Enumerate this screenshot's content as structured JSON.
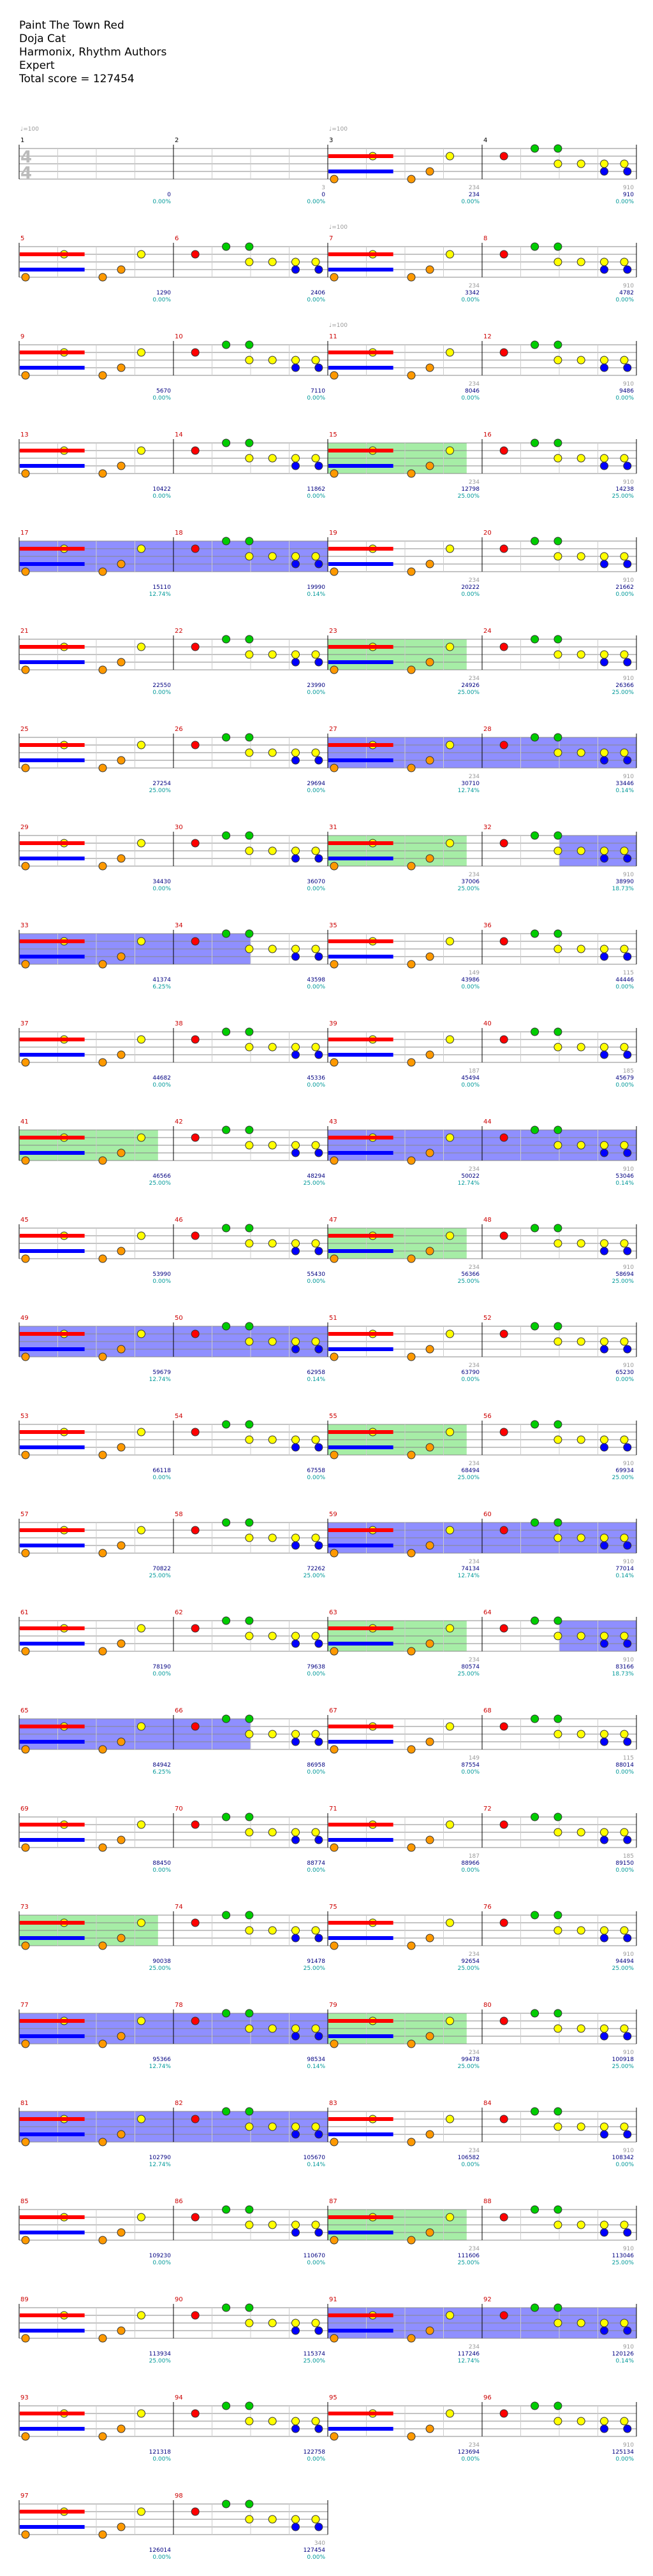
{
  "song": {
    "title": "Paint The Town Red",
    "artist": "Doja Cat",
    "charter": "Harmonix, Rhythm Authors",
    "difficulty": "Expert",
    "total_score_label": "Total score = 127454"
  },
  "time_signature": "4/4",
  "tempo_markers": [
    {
      "measure": 1,
      "label": "♩=100"
    },
    {
      "measure": 3,
      "label": "♩=100"
    },
    {
      "measure": 7,
      "label": "♩=100"
    },
    {
      "measure": 11,
      "label": "♩=100"
    }
  ],
  "colors": {
    "measure_number": "#cc0000",
    "score_text": "#000080",
    "percent_text": "#009999",
    "gray_text": "#999999",
    "overdrive_fill": "#00cc00",
    "fill_region": "#3333ff",
    "note_red": "#ff0000",
    "note_yellow": "#ffff00",
    "note_blue": "#0000ff",
    "note_green": "#00cc00",
    "note_orange": "#ff9900",
    "note_kick": "#ff9900",
    "sustain_brown": "#996600"
  },
  "systems": [
    {
      "measures": [
        1,
        2,
        3,
        4
      ],
      "scores": [
        "0",
        "0",
        "234",
        "910"
      ],
      "percents": [
        "0.00%",
        "0.00%",
        "0.00%",
        "0.00%"
      ],
      "gray": [
        "",
        "3",
        "234",
        "910"
      ],
      "od": null,
      "fill": null
    },
    {
      "measures": [
        5,
        6,
        7,
        8
      ],
      "scores": [
        "1290",
        "2406",
        "3342",
        "4782"
      ],
      "percents": [
        "0.00%",
        "0.00%",
        "0.00%",
        "0.00%"
      ],
      "gray": [
        "",
        "",
        "234",
        "910"
      ],
      "od": null,
      "fill": null
    },
    {
      "measures": [
        9,
        10,
        11,
        12
      ],
      "scores": [
        "5670",
        "7110",
        "8046",
        "9486"
      ],
      "percents": [
        "0.00%",
        "0.00%",
        "0.00%",
        "0.00%"
      ],
      "gray": [
        "",
        "",
        "234",
        "910"
      ],
      "od": null,
      "fill": null
    },
    {
      "measures": [
        13,
        14,
        15,
        16
      ],
      "scores": [
        "10422",
        "11862",
        "12798",
        "14238"
      ],
      "percents": [
        "0.00%",
        "0.00%",
        "25.00%",
        "25.00%"
      ],
      "gray": [
        "",
        "",
        "234",
        "910"
      ],
      "od": [
        2,
        2.9
      ],
      "fill": null
    },
    {
      "measures": [
        17,
        18,
        19,
        20
      ],
      "scores": [
        "15110",
        "19990",
        "20222",
        "21662"
      ],
      "percents": [
        "12.74%",
        "0.14%",
        "0.00%",
        "0.00%"
      ],
      "gray": [
        "",
        "",
        "234",
        "910"
      ],
      "od": null,
      "fill": [
        0,
        2
      ]
    },
    {
      "measures": [
        21,
        22,
        23,
        24
      ],
      "scores": [
        "22550",
        "23990",
        "24926",
        "26366"
      ],
      "percents": [
        "0.00%",
        "0.00%",
        "25.00%",
        "25.00%"
      ],
      "gray": [
        "",
        "",
        "234",
        "910"
      ],
      "od": [
        2,
        2.9
      ],
      "fill": null
    },
    {
      "measures": [
        25,
        26,
        27,
        28
      ],
      "scores": [
        "27254",
        "29694",
        "30710",
        "33446"
      ],
      "percents": [
        "25.00%",
        "0.00%",
        "12.74%",
        "0.14%"
      ],
      "gray": [
        "",
        "",
        "234",
        "910"
      ],
      "od": null,
      "fill": [
        2,
        4
      ]
    },
    {
      "measures": [
        29,
        30,
        31,
        32
      ],
      "scores": [
        "34430",
        "36070",
        "37006",
        "38990"
      ],
      "percents": [
        "0.00%",
        "0.00%",
        "25.00%",
        "18.73%"
      ],
      "gray": [
        "",
        "",
        "234",
        "910"
      ],
      "od": [
        2,
        2.9
      ],
      "fill": [
        3.5,
        4
      ]
    },
    {
      "measures": [
        33,
        34,
        35,
        36
      ],
      "scores": [
        "41374",
        "43598",
        "43986",
        "44446"
      ],
      "percents": [
        "6.25%",
        "0.00%",
        "0.00%",
        "0.00%"
      ],
      "gray": [
        "",
        "",
        "149",
        "115"
      ],
      "od": null,
      "fill": [
        0,
        1.5
      ]
    },
    {
      "measures": [
        37,
        38,
        39,
        40
      ],
      "scores": [
        "44682",
        "45336",
        "45494",
        "45679"
      ],
      "percents": [
        "0.00%",
        "0.00%",
        "0.00%",
        "0.00%"
      ],
      "gray": [
        "",
        "",
        "187",
        "185"
      ],
      "od": null,
      "fill": null
    },
    {
      "measures": [
        41,
        42,
        43,
        44
      ],
      "scores": [
        "46566",
        "48294",
        "50022",
        "53046"
      ],
      "percents": [
        "25.00%",
        "25.00%",
        "12.74%",
        "0.14%"
      ],
      "gray": [
        "",
        "",
        "234",
        "910"
      ],
      "od": [
        0,
        0.9
      ],
      "fill": [
        2,
        4
      ]
    },
    {
      "measures": [
        45,
        46,
        47,
        48
      ],
      "scores": [
        "53990",
        "55430",
        "56366",
        "58694"
      ],
      "percents": [
        "0.00%",
        "0.00%",
        "25.00%",
        "25.00%"
      ],
      "gray": [
        "",
        "",
        "234",
        "910"
      ],
      "od": [
        2,
        2.9
      ],
      "fill": null
    },
    {
      "measures": [
        49,
        50,
        51,
        52
      ],
      "scores": [
        "59679",
        "62958",
        "63790",
        "65230"
      ],
      "percents": [
        "12.74%",
        "0.14%",
        "0.00%",
        "0.00%"
      ],
      "gray": [
        "",
        "",
        "234",
        "910"
      ],
      "od": null,
      "fill": [
        0,
        2
      ]
    },
    {
      "measures": [
        53,
        54,
        55,
        56
      ],
      "scores": [
        "66118",
        "67558",
        "68494",
        "69934"
      ],
      "percents": [
        "0.00%",
        "0.00%",
        "25.00%",
        "25.00%"
      ],
      "gray": [
        "",
        "",
        "234",
        "910"
      ],
      "od": [
        2,
        2.9
      ],
      "fill": null
    },
    {
      "measures": [
        57,
        58,
        59,
        60
      ],
      "scores": [
        "70822",
        "72262",
        "74134",
        "77014"
      ],
      "percents": [
        "25.00%",
        "25.00%",
        "12.74%",
        "0.14%"
      ],
      "gray": [
        "",
        "",
        "234",
        "910"
      ],
      "od": null,
      "fill": [
        2,
        4
      ]
    },
    {
      "measures": [
        61,
        62,
        63,
        64
      ],
      "scores": [
        "78190",
        "79638",
        "80574",
        "83166"
      ],
      "percents": [
        "0.00%",
        "0.00%",
        "25.00%",
        "18.73%"
      ],
      "gray": [
        "",
        "",
        "234",
        "910"
      ],
      "od": [
        2,
        2.9
      ],
      "fill": [
        3.5,
        4
      ]
    },
    {
      "measures": [
        65,
        66,
        67,
        68
      ],
      "scores": [
        "84942",
        "86958",
        "87554",
        "88014"
      ],
      "percents": [
        "6.25%",
        "0.00%",
        "0.00%",
        "0.00%"
      ],
      "gray": [
        "",
        "",
        "149",
        "115"
      ],
      "od": null,
      "fill": [
        0,
        1.5
      ]
    },
    {
      "measures": [
        69,
        70,
        71,
        72
      ],
      "scores": [
        "88450",
        "88774",
        "88966",
        "89150"
      ],
      "percents": [
        "0.00%",
        "0.00%",
        "0.00%",
        "0.00%"
      ],
      "gray": [
        "",
        "",
        "187",
        "185"
      ],
      "od": null,
      "fill": null
    },
    {
      "measures": [
        73,
        74,
        75,
        76
      ],
      "scores": [
        "90038",
        "91478",
        "92654",
        "94494"
      ],
      "percents": [
        "25.00%",
        "25.00%",
        "25.00%",
        "25.00%"
      ],
      "gray": [
        "",
        "",
        "234",
        "910"
      ],
      "od": [
        0,
        0.9
      ],
      "fill": null
    },
    {
      "measures": [
        77,
        78,
        79,
        80
      ],
      "scores": [
        "95366",
        "98534",
        "99478",
        "100918"
      ],
      "percents": [
        "12.74%",
        "0.14%",
        "25.00%",
        "25.00%"
      ],
      "gray": [
        "",
        "",
        "234",
        "910"
      ],
      "od": [
        2,
        2.9
      ],
      "fill": [
        0,
        2
      ]
    },
    {
      "measures": [
        81,
        82,
        83,
        84
      ],
      "scores": [
        "102790",
        "105670",
        "106582",
        "108342"
      ],
      "percents": [
        "12.74%",
        "0.14%",
        "0.00%",
        "0.00%"
      ],
      "gray": [
        "",
        "",
        "234",
        "910"
      ],
      "od": null,
      "fill": [
        0,
        2
      ]
    },
    {
      "measures": [
        85,
        86,
        87,
        88
      ],
      "scores": [
        "109230",
        "110670",
        "111606",
        "113046"
      ],
      "percents": [
        "0.00%",
        "0.00%",
        "25.00%",
        "25.00%"
      ],
      "gray": [
        "",
        "",
        "234",
        "910"
      ],
      "od": [
        2,
        2.9
      ],
      "fill": null
    },
    {
      "measures": [
        89,
        90,
        91,
        92
      ],
      "scores": [
        "113934",
        "115374",
        "117246",
        "120126"
      ],
      "percents": [
        "25.00%",
        "25.00%",
        "12.74%",
        "0.14%"
      ],
      "gray": [
        "",
        "",
        "234",
        "910"
      ],
      "od": null,
      "fill": [
        2,
        4
      ]
    },
    {
      "measures": [
        93,
        94,
        95,
        96
      ],
      "scores": [
        "121318",
        "122758",
        "123694",
        "125134"
      ],
      "percents": [
        "0.00%",
        "0.00%",
        "0.00%",
        "0.00%"
      ],
      "gray": [
        "",
        "",
        "234",
        "910"
      ],
      "od": null,
      "fill": null
    },
    {
      "measures": [
        97,
        98
      ],
      "scores": [
        "126014",
        "127454"
      ],
      "percents": [
        "0.00%",
        "0.00%"
      ],
      "gray": [
        "",
        "340"
      ],
      "od": null,
      "fill": null
    }
  ]
}
